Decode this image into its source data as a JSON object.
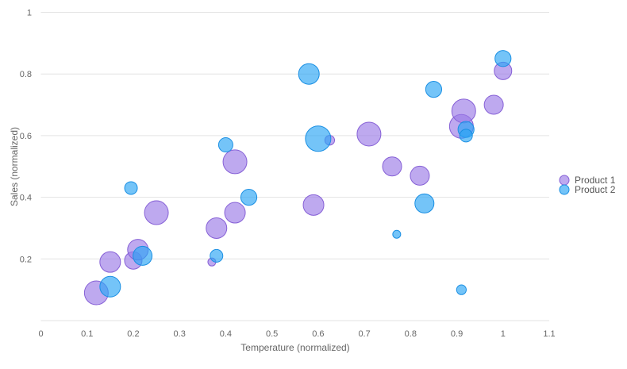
{
  "chart_data": {
    "type": "scatter",
    "subtype": "bubble",
    "title": "",
    "xlabel": "Temperature (normalized)",
    "ylabel": "Sales (normalized)",
    "xlim": [
      0,
      1.1
    ],
    "ylim": [
      0,
      1
    ],
    "x_ticks": [
      "0",
      "0.1",
      "0.2",
      "0.3",
      "0.4",
      "0.5",
      "0.6",
      "0.7",
      "0.8",
      "0.9",
      "1",
      "1.1"
    ],
    "y_ticks": [
      "0.2",
      "0.4",
      "0.6",
      "0.8",
      "1"
    ],
    "grid": "horizontal",
    "legend_position": "right",
    "series": [
      {
        "name": "Product 1",
        "color": "#9b7be6",
        "stroke": "#8660d6",
        "points": [
          {
            "x": 0.12,
            "y": 0.09,
            "size": 0.94
          },
          {
            "x": 0.15,
            "y": 0.19,
            "size": 0.81
          },
          {
            "x": 0.2,
            "y": 0.195,
            "size": 0.69
          },
          {
            "x": 0.21,
            "y": 0.23,
            "size": 0.81
          },
          {
            "x": 0.25,
            "y": 0.35,
            "size": 0.94
          },
          {
            "x": 0.37,
            "y": 0.19,
            "size": 0.31
          },
          {
            "x": 0.38,
            "y": 0.3,
            "size": 0.81
          },
          {
            "x": 0.42,
            "y": 0.515,
            "size": 0.94
          },
          {
            "x": 0.42,
            "y": 0.35,
            "size": 0.81
          },
          {
            "x": 0.59,
            "y": 0.375,
            "size": 0.81
          },
          {
            "x": 0.625,
            "y": 0.585,
            "size": 0.38
          },
          {
            "x": 0.71,
            "y": 0.605,
            "size": 0.94
          },
          {
            "x": 0.76,
            "y": 0.5,
            "size": 0.75
          },
          {
            "x": 0.82,
            "y": 0.47,
            "size": 0.75
          },
          {
            "x": 0.91,
            "y": 0.63,
            "size": 0.94
          },
          {
            "x": 0.915,
            "y": 0.68,
            "size": 0.94
          },
          {
            "x": 0.98,
            "y": 0.7,
            "size": 0.75
          },
          {
            "x": 1.0,
            "y": 0.81,
            "size": 0.69
          }
        ]
      },
      {
        "name": "Product 2",
        "color": "#2aa4f4",
        "stroke": "#1a8fe3",
        "points": [
          {
            "x": 0.15,
            "y": 0.11,
            "size": 0.81
          },
          {
            "x": 0.22,
            "y": 0.21,
            "size": 0.75
          },
          {
            "x": 0.195,
            "y": 0.43,
            "size": 0.5
          },
          {
            "x": 0.38,
            "y": 0.21,
            "size": 0.5
          },
          {
            "x": 0.4,
            "y": 0.57,
            "size": 0.56
          },
          {
            "x": 0.45,
            "y": 0.4,
            "size": 0.63
          },
          {
            "x": 0.58,
            "y": 0.8,
            "size": 0.81
          },
          {
            "x": 0.6,
            "y": 0.59,
            "size": 1.0
          },
          {
            "x": 0.77,
            "y": 0.28,
            "size": 0.31
          },
          {
            "x": 0.83,
            "y": 0.38,
            "size": 0.75
          },
          {
            "x": 0.85,
            "y": 0.75,
            "size": 0.63
          },
          {
            "x": 0.92,
            "y": 0.62,
            "size": 0.63
          },
          {
            "x": 0.92,
            "y": 0.6,
            "size": 0.5
          },
          {
            "x": 0.91,
            "y": 0.1,
            "size": 0.38
          },
          {
            "x": 1.0,
            "y": 0.85,
            "size": 0.63
          }
        ]
      }
    ]
  }
}
